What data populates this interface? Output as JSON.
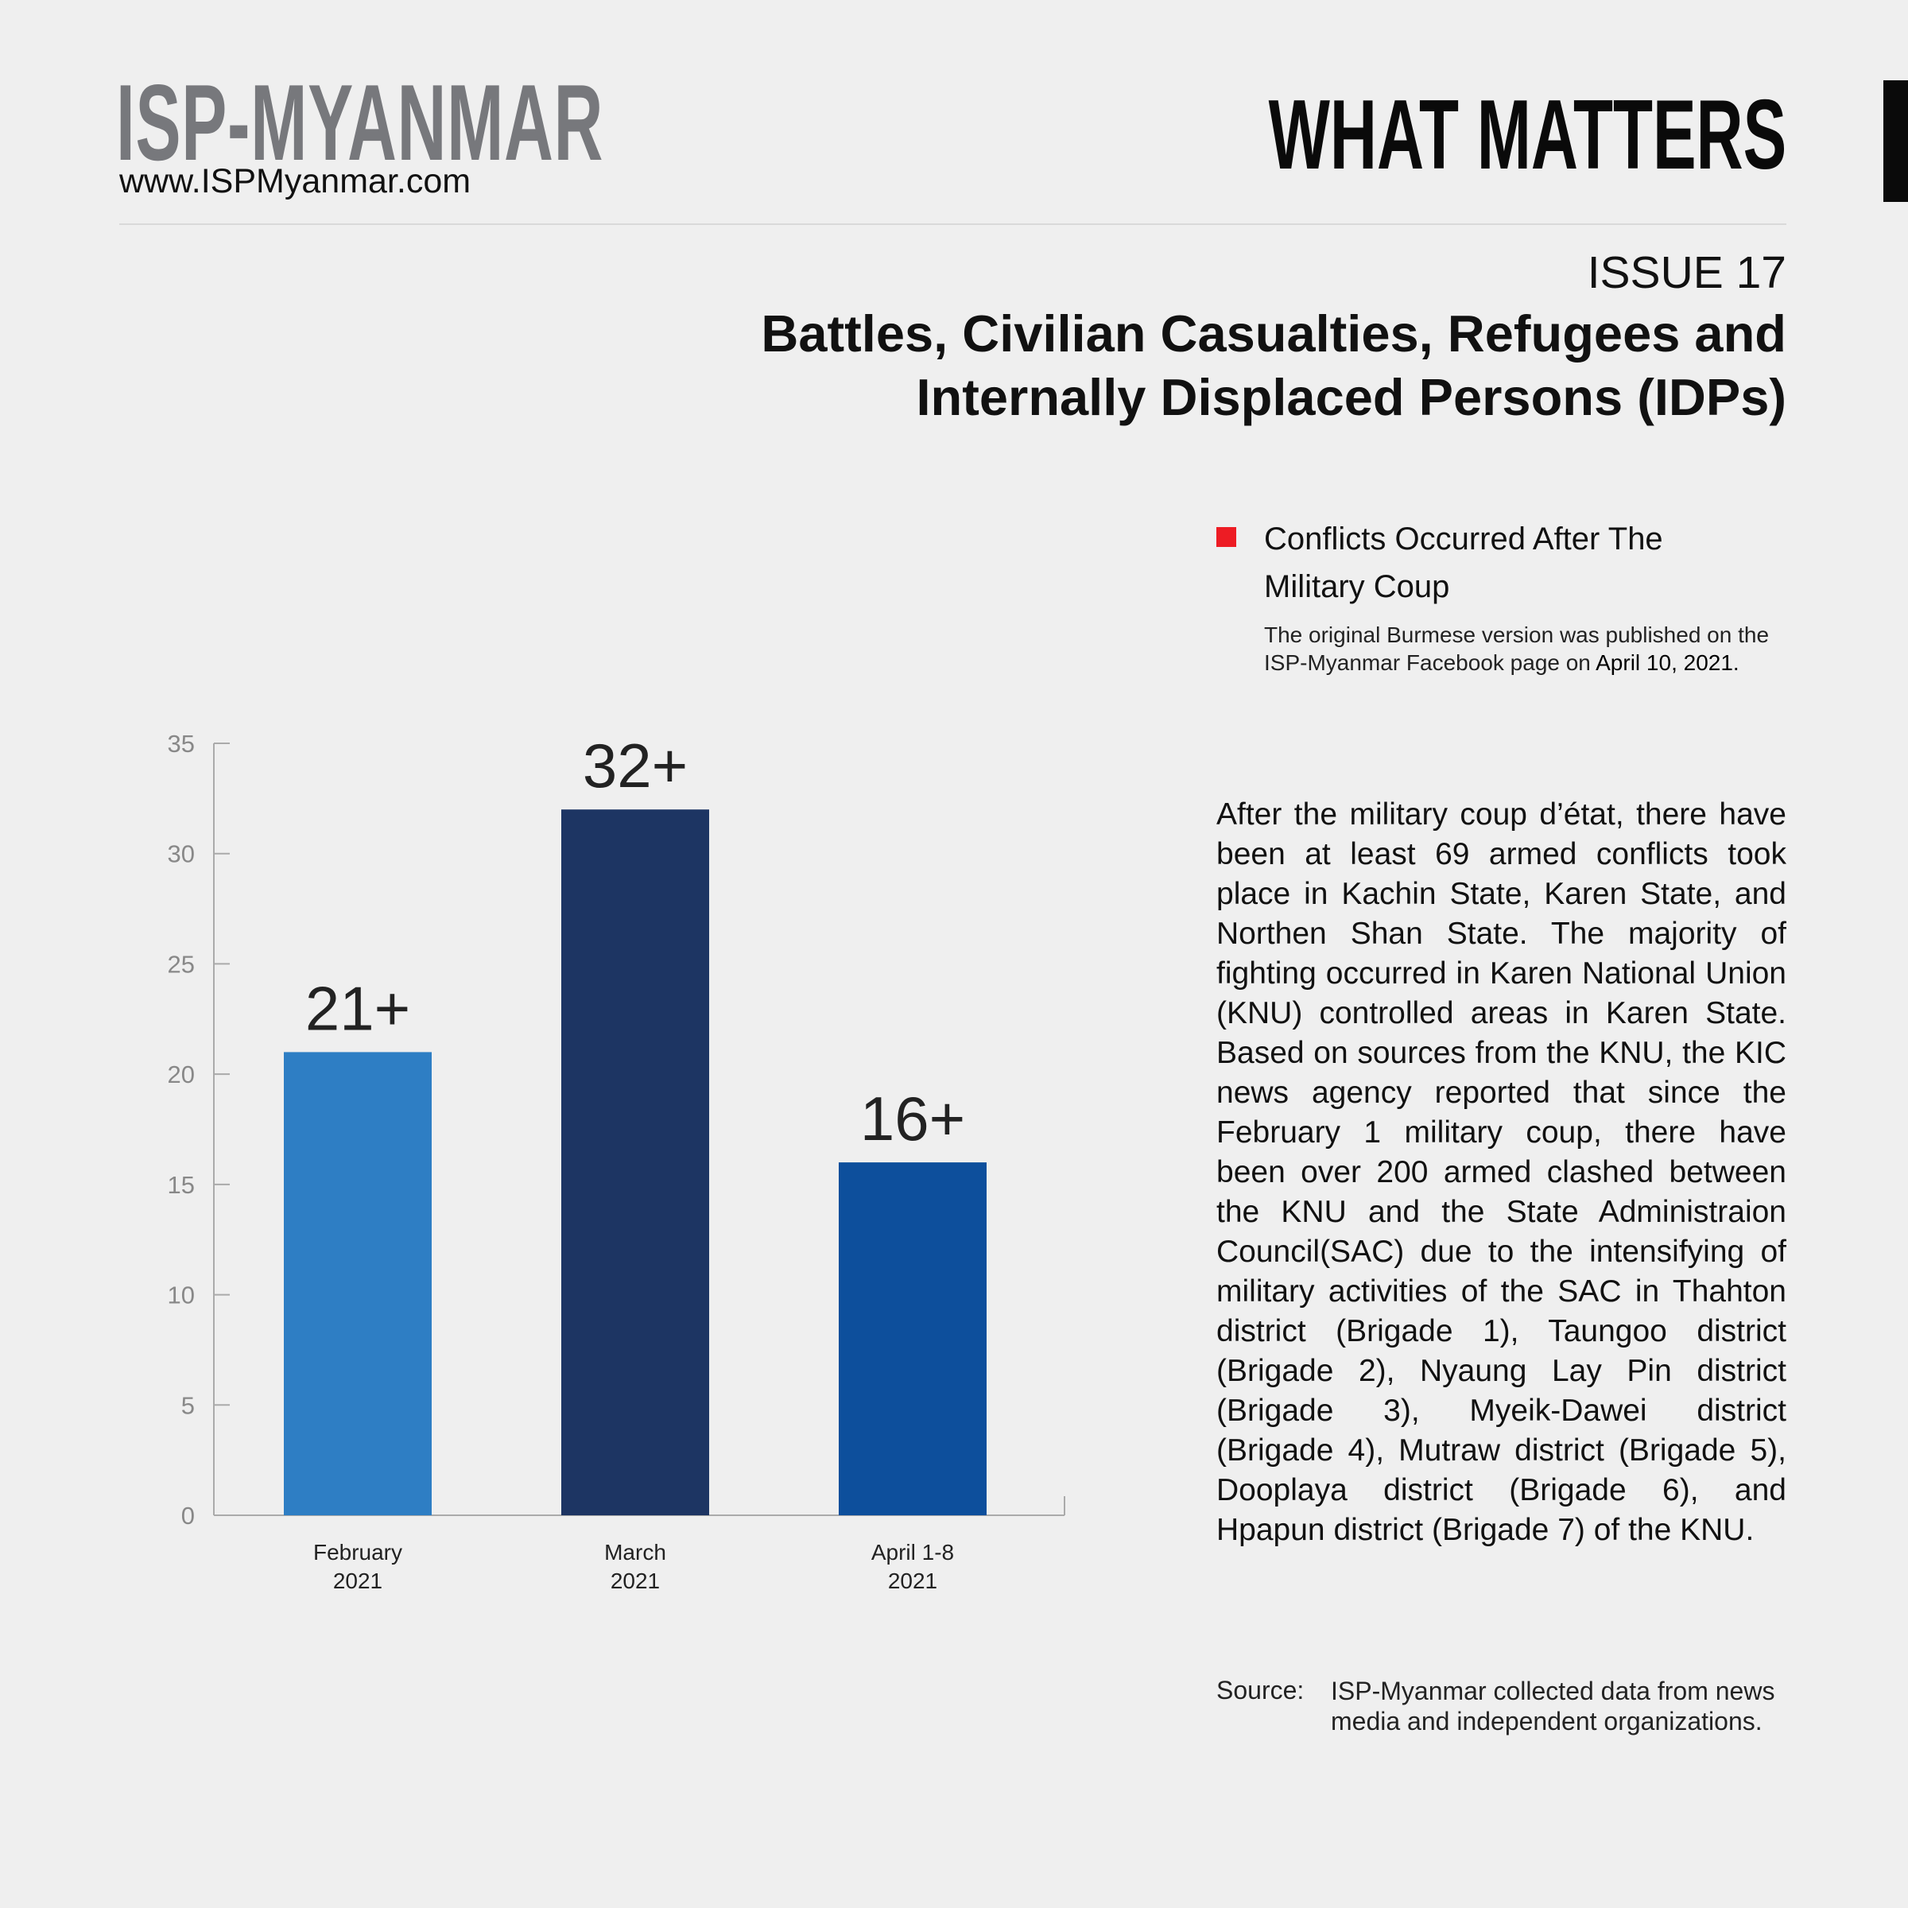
{
  "header": {
    "logo": "ISP-MYANMAR",
    "url": "www.ISPMyanmar.com",
    "series_name": "WHAT MATTERS",
    "issue": "ISSUE 17",
    "title_line1": "Battles, Civilian Casualties, Refugees and",
    "title_line2": "Internally Displaced Persons (IDPs)"
  },
  "legend": {
    "label": "Conflicts Occurred After The Military Coup",
    "color": "#ed1c24"
  },
  "note": {
    "text": "The original Burmese version was published on the ISP-Myanmar Facebook page on",
    "date": "April 10, 2021."
  },
  "body": "After the military coup d’état, there have been at least 69 armed conflicts took place in Kachin State, Karen State, and Northen Shan State. The majority of fighting occurred in Karen National Union (KNU) controlled areas in Karen State. Based on sources from the KNU, the KIC news agency reported that since the February 1 military coup, there have been over 200 armed clashed between the KNU and the State Administraion Council(SAC) due to the intensifying of military activities of the SAC in Thahton district (Brigade 1), Taungoo district (Brigade 2), Nyaung Lay Pin district (Brigade 3), Myeik-Dawei district (Brigade 4), Mutraw district (Brigade 5), Dooplaya district (Brigade 6), and Hpapun district (Brigade 7) of the KNU.",
  "source": {
    "label": "Source:",
    "text": "ISP-Myanmar collected data from news media and independent organizations."
  },
  "chart_data": {
    "type": "bar",
    "categories": [
      [
        "February",
        "2021"
      ],
      [
        "March",
        "2021"
      ],
      [
        "April 1-8",
        "2021"
      ]
    ],
    "values": [
      21,
      32,
      16
    ],
    "data_labels": [
      "21+",
      "32+",
      "16+"
    ],
    "colors": [
      "#2e7ec4",
      "#1d3563",
      "#0d4f9c"
    ],
    "yticks": [
      "0",
      "5",
      "10",
      "15",
      "20",
      "25",
      "30",
      "35"
    ],
    "ylim": [
      0,
      35
    ],
    "title": "",
    "xlabel": "",
    "ylabel": ""
  }
}
